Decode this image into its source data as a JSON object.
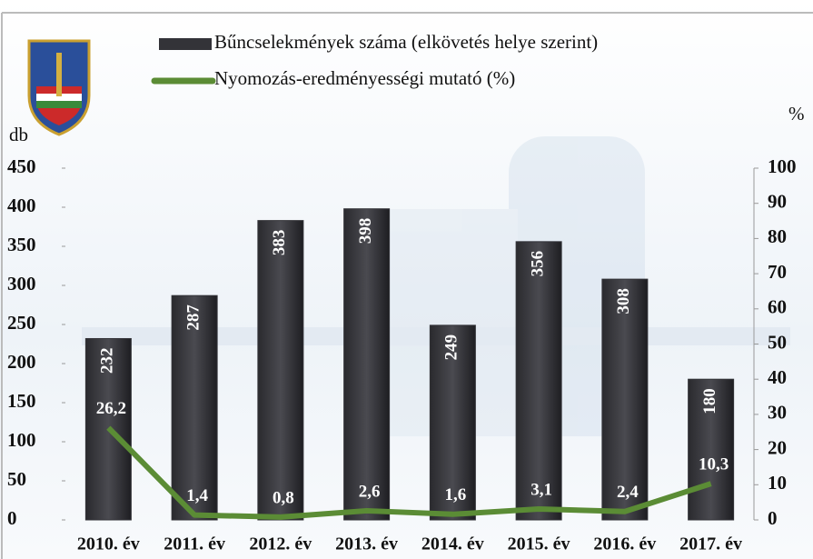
{
  "chart_data": {
    "type": "bar",
    "categories": [
      "2010. év",
      "2011. év",
      "2012. év",
      "2013. év",
      "2014. év",
      "2015. év",
      "2016. év",
      "2017. év"
    ],
    "series": [
      {
        "name": "Bűncselekmények száma (elkövetés helye szerint)",
        "type": "bar",
        "color": "#333338",
        "values": [
          232,
          287,
          383,
          398,
          249,
          356,
          308,
          180
        ]
      },
      {
        "name": "Nyomozás-eredményességi mutató (%)",
        "type": "line",
        "axis": "y2",
        "color": "#5b8c35",
        "values": [
          26.2,
          1.4,
          0.8,
          2.6,
          1.6,
          3.1,
          2.4,
          10.3
        ],
        "value_labels": [
          "26,2",
          "1,4",
          "0,8",
          "2,6",
          "1,6",
          "3,1",
          "2,4",
          "10,3"
        ]
      }
    ],
    "ylabel": "db",
    "y2label": "%",
    "ylim": [
      0,
      450
    ],
    "yticks": [
      0,
      50,
      100,
      150,
      200,
      250,
      300,
      350,
      400,
      450
    ],
    "y2lim": [
      0,
      100
    ],
    "y2ticks": [
      0,
      10,
      20,
      30,
      40,
      50,
      60,
      70,
      80,
      90,
      100
    ],
    "grid": false
  }
}
